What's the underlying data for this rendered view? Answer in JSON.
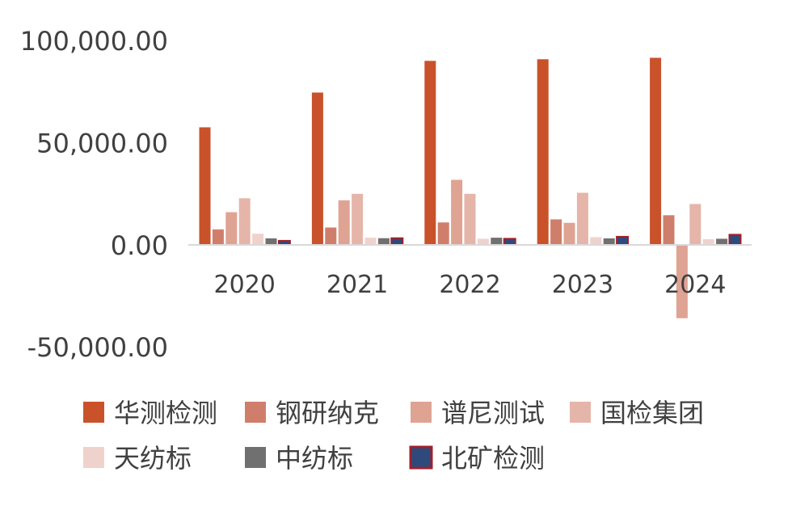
{
  "chart_data": {
    "type": "bar",
    "categories": [
      "2020",
      "2021",
      "2022",
      "2023",
      "2024"
    ],
    "ylim": [
      -50000,
      100000
    ],
    "y_ticks": [
      "100,000.00",
      "50,000.00",
      "0.00",
      "-50,000.00"
    ],
    "y_tick_values": [
      100000,
      50000,
      0,
      -50000
    ],
    "legend_position": "bottom",
    "series": [
      {
        "name": "华测检测",
        "color": "#C9522A",
        "border": "#C9522A",
        "values": [
          57500,
          74500,
          90000,
          90800,
          91500
        ]
      },
      {
        "name": "钢研纳克",
        "color": "#D07E6C",
        "border": "#D07E6C",
        "values": [
          7600,
          8500,
          11000,
          12500,
          14500
        ]
      },
      {
        "name": "谱尼测试",
        "color": "#DFA393",
        "border": "#DFA393",
        "values": [
          16000,
          21800,
          31800,
          10800,
          -36000
        ]
      },
      {
        "name": "国检集团",
        "color": "#E5B5AA",
        "border": "#E5B5AA",
        "values": [
          22800,
          25000,
          25000,
          25500,
          20000
        ]
      },
      {
        "name": "天纺标",
        "color": "#F0D2CC",
        "border": "#F0D2CC",
        "values": [
          5500,
          3500,
          3000,
          3800,
          2800
        ]
      },
      {
        "name": "中纺标",
        "color": "#707070",
        "border": "#707070",
        "values": [
          3200,
          3300,
          3500,
          3200,
          3000
        ]
      },
      {
        "name": "北矿检测",
        "color": "#2E4A7D",
        "border": "#A0202A",
        "values": [
          2000,
          3300,
          3000,
          4000,
          5000
        ]
      }
    ]
  }
}
